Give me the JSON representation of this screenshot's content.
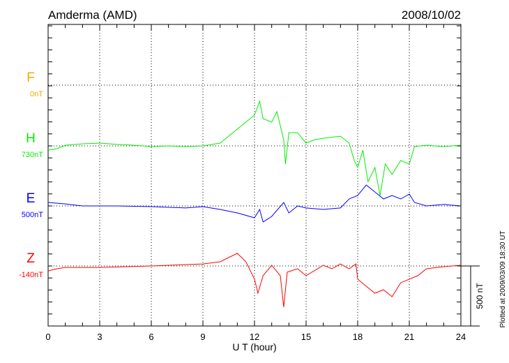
{
  "chart_data": {
    "type": "line",
    "title": "Amderma (AMD)",
    "date": "2008/10/02",
    "xlabel": "U T (hour)",
    "xlim": [
      0,
      24
    ],
    "xticks": [
      0,
      3,
      6,
      9,
      12,
      15,
      18,
      21,
      24
    ],
    "scale_label": "500 nT",
    "scale_nT": 500,
    "footer": "Plotted at 2009/03/09 18:30 UT",
    "grid": true,
    "series": [
      {
        "name": "F",
        "baseline_label": "0nT",
        "color": "#ffa500",
        "x": [],
        "values": []
      },
      {
        "name": "H",
        "baseline_label": "730nT",
        "color": "#00ee00",
        "x": [
          0,
          0.5,
          1,
          2,
          3,
          4,
          5,
          6,
          7,
          8,
          9,
          10,
          11,
          11.5,
          12,
          12.3,
          12.5,
          13,
          13.3,
          13.7,
          13.8,
          14,
          14.5,
          15,
          15.5,
          16,
          17,
          17.5,
          17.8,
          18,
          18.3,
          18.6,
          19,
          19.3,
          19.6,
          20,
          20.5,
          21,
          21.3,
          22,
          23,
          24
        ],
        "values": [
          -35,
          -23,
          6,
          17,
          23,
          12,
          6,
          -6,
          0,
          -6,
          0,
          23,
          140,
          198,
          256,
          372,
          227,
          198,
          285,
          52,
          -151,
          110,
          110,
          23,
          52,
          64,
          81,
          23,
          -122,
          -180,
          -35,
          -297,
          -180,
          -413,
          -151,
          -238,
          -122,
          -151,
          -6,
          6,
          -6,
          6
        ]
      },
      {
        "name": "E",
        "baseline_label": "500nT",
        "color": "#0000ff",
        "x": [
          0,
          1,
          2,
          4,
          6,
          8,
          9,
          10,
          11,
          12,
          12.3,
          12.5,
          13,
          13.7,
          14,
          14.5,
          15,
          16,
          17,
          17.5,
          18,
          18.5,
          19,
          19.5,
          20,
          20.5,
          21,
          21.3,
          22,
          23,
          24
        ],
        "values": [
          29,
          17,
          0,
          0,
          -6,
          -17,
          -6,
          -29,
          -58,
          -99,
          -29,
          -134,
          -87,
          29,
          -58,
          0,
          -17,
          -29,
          -17,
          58,
          87,
          174,
          116,
          58,
          87,
          58,
          99,
          29,
          0,
          12,
          0
        ]
      },
      {
        "name": "Z",
        "baseline_label": "-140nT",
        "color": "#ff0000",
        "x": [
          0,
          0.5,
          1,
          3,
          6,
          9,
          10,
          11,
          11.5,
          12,
          12.2,
          12.5,
          13,
          13.5,
          13.7,
          13.9,
          14.5,
          15,
          16,
          16.5,
          17,
          17.5,
          17.9,
          18,
          18.5,
          19,
          19.5,
          20,
          20.5,
          21,
          21.5,
          22,
          23,
          24
        ],
        "values": [
          -41,
          -23,
          -12,
          -12,
          0,
          17,
          35,
          105,
          35,
          -110,
          -227,
          -81,
          6,
          -81,
          -343,
          -52,
          -23,
          -81,
          6,
          -23,
          17,
          -23,
          17,
          -110,
          -169,
          -227,
          -198,
          -256,
          -140,
          -110,
          -81,
          -23,
          -6,
          6
        ]
      }
    ]
  }
}
